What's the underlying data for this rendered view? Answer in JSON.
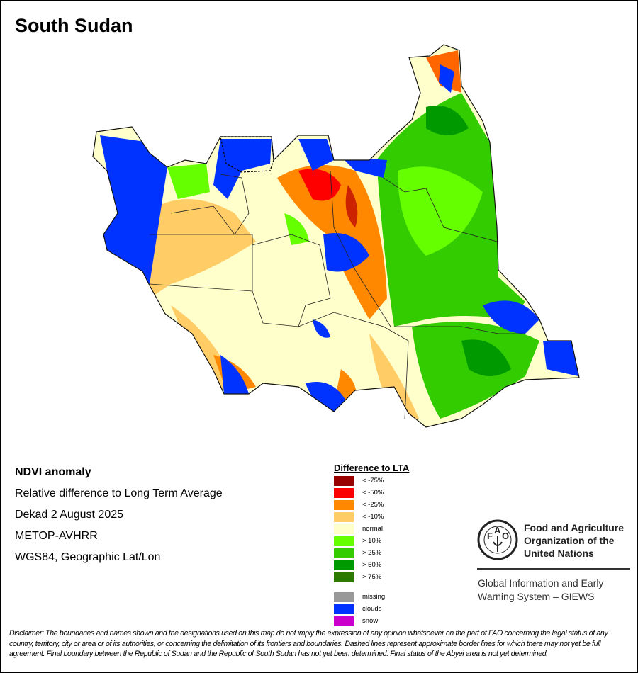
{
  "title": "South Sudan",
  "info": {
    "product": "NDVI anomaly",
    "description": "Relative difference to Long Term Average",
    "period": "Dekad 2 August 2025",
    "sensor": "METOP-AVHRR",
    "projection": "WGS84, Geographic Lat/Lon"
  },
  "legend": {
    "title": "Difference to LTA",
    "classes": [
      {
        "label": "< -75%",
        "color": "#990000"
      },
      {
        "label": "< -50%",
        "color": "#ff0000"
      },
      {
        "label": "< -25%",
        "color": "#ff8800"
      },
      {
        "label": "< -10%",
        "color": "#ffcc66"
      },
      {
        "label": "normal",
        "color": "#ffffcc"
      },
      {
        "label": "> 10%",
        "color": "#66ff00"
      },
      {
        "label": "> 25%",
        "color": "#33cc00"
      },
      {
        "label": "> 50%",
        "color": "#009900"
      },
      {
        "label": "> 75%",
        "color": "#2e7a00"
      }
    ],
    "other": [
      {
        "label": "missing",
        "color": "#999999"
      },
      {
        "label": "clouds",
        "color": "#0033ff"
      },
      {
        "label": "snow",
        "color": "#cc00cc"
      }
    ]
  },
  "fao": {
    "logo_letters": "FAO FIAT PANIS",
    "name_lines": [
      "Food and Agriculture",
      "Organization of the",
      "United Nations"
    ],
    "giews_lines": [
      "Global Information and Early",
      "Warning System – GIEWS"
    ]
  },
  "disclaimer": "Disclaimer: The boundaries and names shown and the designations used on this map do not imply the expression of any opinion whatsoever on the part of FAO concerning the legal status of any country, territory, city or area or of its authorities, or concerning the delimitation of its frontiers and boundaries. Dashed lines represent approximate border lines for which there may not yet be full agreement.  Final boundary between the Republic of Sudan and the Republic of South Sudan has not yet been determined. Final status of the Abyei area is not yet determined."
}
